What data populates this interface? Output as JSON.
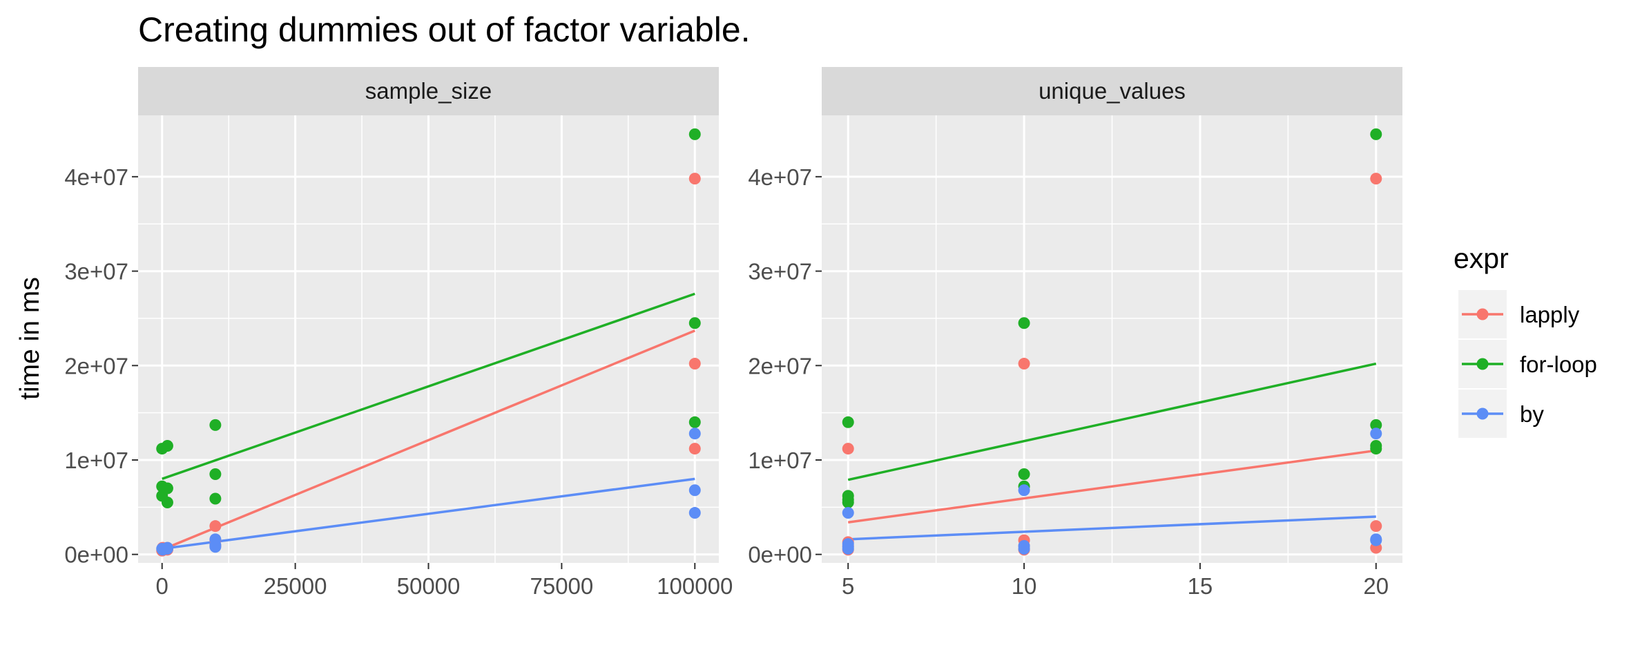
{
  "colors": {
    "lapply": "#F8766D",
    "for-loop": "#1FAF26",
    "by": "#5C8DF6",
    "panel_bg": "#EBEBEB",
    "strip_bg": "#D9D9D9",
    "grid": "#FFFFFF"
  },
  "chart_data": {
    "type": "scatter",
    "title": "Creating dummies out of factor variable.",
    "ylabel": "time in ms",
    "legend": {
      "title": "expr",
      "position": "right",
      "entries": [
        "lapply",
        "for-loop",
        "by"
      ]
    },
    "y_ticks": [
      "0e+00",
      "1e+07",
      "2e+07",
      "3e+07",
      "4e+07"
    ],
    "panels": [
      {
        "strip": "sample_size",
        "xlim": [
          -4500,
          104500
        ],
        "ylim": [
          -900000,
          46500000
        ],
        "x_ticks": [
          0,
          25000,
          50000,
          75000,
          100000
        ],
        "x_tick_labels": [
          "0",
          "25000",
          "50000",
          "75000",
          "100000"
        ],
        "x_minor": [
          12500,
          37500,
          62500,
          87500
        ],
        "series": [
          {
            "name": "lapply",
            "points": [
              [
                0,
                400000
              ],
              [
                100,
                600000
              ],
              [
                100,
                700000
              ],
              [
                1000,
                500000
              ],
              [
                1000,
                700000
              ],
              [
                10000,
                3000000
              ],
              [
                10000,
                1500000
              ],
              [
                10000,
                900000
              ],
              [
                100000,
                39800000
              ],
              [
                100000,
                20200000
              ],
              [
                100000,
                11200000
              ]
            ],
            "fit": [
              [
                0,
                500000
              ],
              [
                100000,
                23700000
              ]
            ]
          },
          {
            "name": "for-loop",
            "points": [
              [
                0,
                11200000
              ],
              [
                0,
                7200000
              ],
              [
                0,
                6200000
              ],
              [
                1000,
                11500000
              ],
              [
                1000,
                7000000
              ],
              [
                1000,
                5500000
              ],
              [
                10000,
                13700000
              ],
              [
                10000,
                8500000
              ],
              [
                10000,
                5900000
              ],
              [
                100000,
                44500000
              ],
              [
                100000,
                24500000
              ],
              [
                100000,
                14000000
              ]
            ],
            "fit": [
              [
                0,
                8000000
              ],
              [
                100000,
                27600000
              ]
            ]
          },
          {
            "name": "by",
            "points": [
              [
                0,
                600000
              ],
              [
                100,
                500000
              ],
              [
                1000,
                700000
              ],
              [
                1000,
                600000
              ],
              [
                10000,
                1600000
              ],
              [
                10000,
                1000000
              ],
              [
                10000,
                800000
              ],
              [
                100000,
                12800000
              ],
              [
                100000,
                6800000
              ],
              [
                100000,
                4400000
              ]
            ],
            "fit": [
              [
                0,
                600000
              ],
              [
                100000,
                8000000
              ]
            ]
          }
        ]
      },
      {
        "strip": "unique_values",
        "xlim": [
          4.25,
          20.75
        ],
        "ylim": [
          -900000,
          46500000
        ],
        "x_ticks": [
          5,
          10,
          15,
          20
        ],
        "x_tick_labels": [
          "5",
          "10",
          "15",
          "20"
        ],
        "x_minor": [
          7.5,
          12.5,
          17.5
        ],
        "series": [
          {
            "name": "lapply",
            "points": [
              [
                5,
                11200000
              ],
              [
                5,
                1300000
              ],
              [
                5,
                900000
              ],
              [
                5,
                500000
              ],
              [
                10,
                20200000
              ],
              [
                10,
                1500000
              ],
              [
                10,
                900000
              ],
              [
                10,
                500000
              ],
              [
                20,
                39800000
              ],
              [
                20,
                3000000
              ],
              [
                20,
                700000
              ]
            ],
            "fit": [
              [
                5,
                3400000
              ],
              [
                20,
                11000000
              ]
            ]
          },
          {
            "name": "for-loop",
            "points": [
              [
                5,
                14000000
              ],
              [
                5,
                6200000
              ],
              [
                5,
                5800000
              ],
              [
                5,
                5500000
              ],
              [
                10,
                24500000
              ],
              [
                10,
                8500000
              ],
              [
                10,
                7200000
              ],
              [
                20,
                44500000
              ],
              [
                20,
                13700000
              ],
              [
                20,
                11500000
              ],
              [
                20,
                11200000
              ]
            ],
            "fit": [
              [
                5,
                7900000
              ],
              [
                20,
                20200000
              ]
            ]
          },
          {
            "name": "by",
            "points": [
              [
                5,
                4400000
              ],
              [
                5,
                1100000
              ],
              [
                5,
                800000
              ],
              [
                5,
                600000
              ],
              [
                10,
                6800000
              ],
              [
                10,
                900000
              ],
              [
                10,
                600000
              ],
              [
                20,
                12800000
              ],
              [
                20,
                1600000
              ],
              [
                20,
                1500000
              ]
            ],
            "fit": [
              [
                5,
                1600000
              ],
              [
                20,
                4000000
              ]
            ]
          }
        ]
      }
    ]
  }
}
